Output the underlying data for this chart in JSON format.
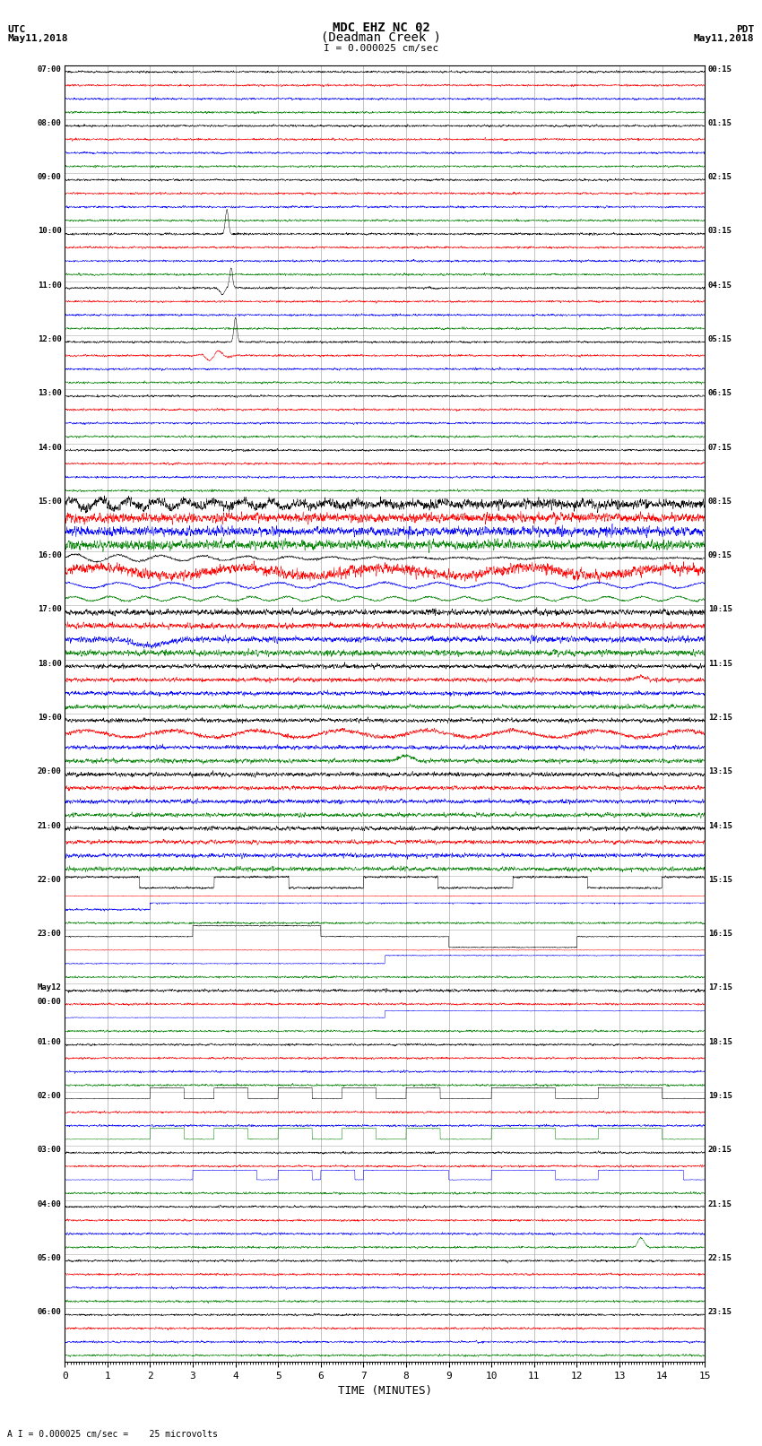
{
  "title_line1": "MDC EHZ NC 02",
  "title_line2": "(Deadman Creek )",
  "scale_label": "I = 0.000025 cm/sec",
  "footer_label": "A I = 0.000025 cm/sec =    25 microvolts",
  "xlabel": "TIME (MINUTES)",
  "left_header_1": "UTC",
  "left_header_2": "May11,2018",
  "right_header_1": "PDT",
  "right_header_2": "May11,2018",
  "left_label_times": [
    "07:00",
    "08:00",
    "09:00",
    "10:00",
    "11:00",
    "12:00",
    "13:00",
    "14:00",
    "15:00",
    "16:00",
    "17:00",
    "18:00",
    "19:00",
    "20:00",
    "21:00",
    "22:00",
    "23:00",
    "May12\n00:00",
    "01:00",
    "02:00",
    "03:00",
    "04:00",
    "05:00",
    "06:00"
  ],
  "right_label_times": [
    "00:15",
    "01:15",
    "02:15",
    "03:15",
    "04:15",
    "05:15",
    "06:15",
    "07:15",
    "08:15",
    "09:15",
    "10:15",
    "11:15",
    "12:15",
    "13:15",
    "14:15",
    "15:15",
    "16:15",
    "17:15",
    "18:15",
    "19:15",
    "20:15",
    "21:15",
    "22:15",
    "23:15"
  ],
  "colors": [
    "black",
    "red",
    "blue",
    "green"
  ],
  "background": "white",
  "grid_color": "#888888",
  "fig_width": 8.5,
  "fig_height": 16.13,
  "xlim": [
    0,
    15
  ],
  "xticks": [
    0,
    1,
    2,
    3,
    4,
    5,
    6,
    7,
    8,
    9,
    10,
    11,
    12,
    13,
    14,
    15
  ],
  "dpi": 100,
  "num_hour_blocks": 24,
  "traces_per_block": 4
}
